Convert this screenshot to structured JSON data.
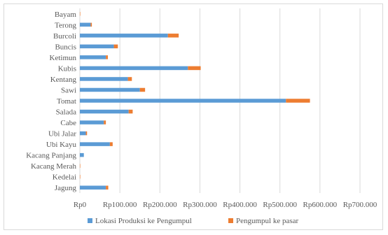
{
  "chart_data": {
    "type": "bar",
    "orientation": "horizontal",
    "stacked": true,
    "categories": [
      "Bayam",
      "Terong",
      "Burcoli",
      "Buncis",
      "Ketimun",
      "Kubis",
      "Kentang",
      "Sawi",
      "Tomat",
      "Salada",
      "Cabe",
      "Ubi Jalar",
      "Ubi Kayu",
      "Kacang Panjang",
      "Kacang Merah",
      "Kedelai",
      "Jagung"
    ],
    "series": [
      {
        "name": "Lokasi Produksi ke Pengumpul",
        "color": "#5b9bd5",
        "values": [
          0,
          27000,
          220000,
          85000,
          65000,
          270000,
          120000,
          150000,
          515000,
          122000,
          60000,
          15000,
          75000,
          10000,
          0,
          0,
          65000
        ]
      },
      {
        "name": "Pengumpul ke pasar",
        "color": "#ed7d31",
        "values": [
          1000,
          3000,
          27000,
          10000,
          5000,
          32000,
          10000,
          13000,
          60000,
          10000,
          5000,
          3000,
          7000,
          0,
          1000,
          1000,
          6000
        ]
      }
    ],
    "xlim": [
      0,
      700000
    ],
    "xticks": [
      "Rp0",
      "Rp100.000",
      "Rp200.000",
      "Rp300.000",
      "Rp400.000",
      "Rp500.000",
      "Rp600.000",
      "Rp700.000"
    ],
    "grid": true,
    "legend_position": "bottom"
  }
}
